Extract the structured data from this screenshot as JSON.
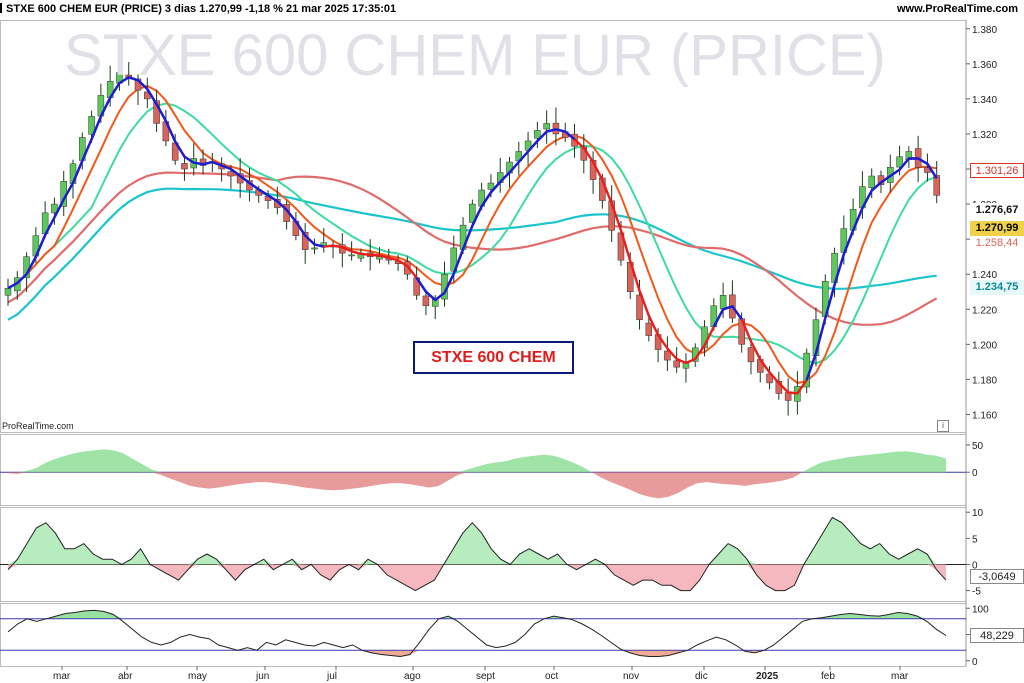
{
  "header": {
    "left": "STXE 600 CHEM EUR (PRICE) 3 dias 1.270,99 -1,18 % 21 mar 2025 17:35:01",
    "right": "www.ProRealTime.com"
  },
  "watermark": "STXE 600 CHEM EUR (PRICE)",
  "annotation": "STXE 600 CHEM",
  "sub_credit": "ProRealTime.com",
  "info_icon": "i",
  "colors": {
    "up": "#5cc85c",
    "down": "#d9655a",
    "ma_fast": "#1420d8",
    "ma_red": "#ea1c1c",
    "ma_orange": "#f2581c",
    "ma_green": "#3ddba0",
    "ma_salmon": "#e06b6b",
    "ma_cyan": "#1bc4cc"
  },
  "badges": {
    "b1": "1.301,26",
    "b2": "1.276,67",
    "b3": "1.270,99",
    "b4": "1.258,44",
    "b5": "1.234,75",
    "osc2": "-3,0649",
    "osc3": "48,229"
  },
  "chart_data": [
    {
      "type": "candlestick",
      "title": "STXE 600 CHEM EUR (PRICE)",
      "x_ticks": [
        "mar",
        "abr",
        "may",
        "jun",
        "jul",
        "ago",
        "sept",
        "oct",
        "nov",
        "dic",
        "2025",
        "feb",
        "mar"
      ],
      "ylim": [
        1150,
        1385
      ],
      "y_ticks": [
        "1.380",
        "1.360",
        "1.340",
        "1.320",
        "1.300",
        "1.280",
        "1.260",
        "1.240",
        "1.220",
        "1.200",
        "1.180",
        "1.160"
      ],
      "y_tick_values": [
        1380,
        1360,
        1340,
        1320,
        1300,
        1280,
        1260,
        1240,
        1220,
        1200,
        1180,
        1160
      ],
      "last_close": 1270.99,
      "change_pct": -1.18,
      "series_levels": [
        1301.26,
        1276.67,
        1270.99,
        1258.44,
        1234.75
      ],
      "close_path": [
        1232,
        1238,
        1250,
        1262,
        1275,
        1280,
        1293,
        1303,
        1318,
        1330,
        1342,
        1350,
        1355,
        1352,
        1345,
        1340,
        1326,
        1316,
        1305,
        1300,
        1306,
        1302,
        1304,
        1300,
        1296,
        1292,
        1288,
        1285,
        1282,
        1278,
        1270,
        1262,
        1254,
        1255,
        1258,
        1256,
        1252,
        1251,
        1252,
        1250,
        1250,
        1248,
        1246,
        1240,
        1228,
        1222,
        1226,
        1240,
        1255,
        1268,
        1280,
        1288,
        1292,
        1298,
        1304,
        1310,
        1316,
        1322,
        1326,
        1320,
        1318,
        1313,
        1305,
        1294,
        1282,
        1265,
        1248,
        1230,
        1214,
        1205,
        1197,
        1191,
        1187,
        1190,
        1198,
        1210,
        1222,
        1228,
        1215,
        1200,
        1190,
        1184,
        1178,
        1172,
        1168,
        1176,
        1195,
        1214,
        1236,
        1252,
        1266,
        1277,
        1290,
        1296,
        1291,
        1301,
        1307,
        1310,
        1301,
        1298,
        1285
      ],
      "moving_averages": [
        {
          "name": "fast",
          "color": "#1420d8",
          "from": 0,
          "to": 35
        },
        {
          "name": "fast",
          "color": "#1420d8",
          "from": 44,
          "to": 62
        },
        {
          "name": "fast",
          "color": "#1420d8",
          "from": 76,
          "to": 80
        },
        {
          "name": "fast",
          "color": "#1420d8",
          "from": 86,
          "to": 101
        }
      ]
    },
    {
      "type": "area",
      "ylim": [
        -60,
        70
      ],
      "y_ticks": [
        "50",
        "0"
      ],
      "y_tick_values": [
        50,
        0
      ],
      "values": [
        -2,
        -3,
        3,
        8,
        18,
        25,
        30,
        35,
        38,
        40,
        42,
        40,
        35,
        25,
        15,
        5,
        -5,
        -12,
        -18,
        -25,
        -28,
        -30,
        -28,
        -25,
        -22,
        -20,
        -18,
        -18,
        -20,
        -22,
        -25,
        -28,
        -30,
        -32,
        -33,
        -32,
        -30,
        -28,
        -25,
        -22,
        -20,
        -20,
        -22,
        -25,
        -28,
        -25,
        -15,
        -5,
        5,
        10,
        15,
        18,
        20,
        25,
        28,
        30,
        32,
        30,
        25,
        18,
        10,
        0,
        -10,
        -18,
        -25,
        -32,
        -40,
        -45,
        -48,
        -45,
        -38,
        -28,
        -20,
        -18,
        -20,
        -22,
        -23,
        -25,
        -22,
        -20,
        -18,
        -15,
        -10,
        0,
        10,
        18,
        22,
        25,
        28,
        30,
        32,
        34,
        36,
        38,
        38,
        36,
        32,
        30,
        25
      ]
    },
    {
      "type": "area",
      "ylim": [
        -7,
        11
      ],
      "y_ticks": [
        "10",
        "5",
        "0",
        "-5"
      ],
      "y_tick_values": [
        10,
        5,
        0,
        -5
      ],
      "last_value": -3.0649,
      "values": [
        -1,
        1,
        4,
        7,
        8,
        6,
        3,
        3,
        4,
        2,
        1,
        1,
        0,
        1,
        3,
        0,
        -1,
        -2,
        -3,
        -1,
        1,
        2,
        1,
        -1,
        -3,
        -1,
        0,
        1,
        -1,
        0,
        1,
        -1,
        0,
        -2,
        -3,
        -1,
        0,
        -1,
        1,
        0,
        -2,
        -3,
        -4,
        -5,
        -4,
        -3,
        0,
        3,
        6,
        8,
        6,
        3,
        1,
        0,
        2,
        3,
        2,
        1,
        2,
        0,
        -1,
        0,
        1,
        0,
        -2,
        -3,
        -4,
        -3,
        -3,
        -4,
        -4,
        -5,
        -5,
        -3,
        0,
        2,
        4,
        3,
        1,
        -2,
        -4,
        -5,
        -5,
        -4,
        0,
        3,
        6,
        9,
        8,
        6,
        4,
        3,
        4,
        2,
        1,
        2,
        3,
        2,
        -1,
        -3
      ]
    },
    {
      "type": "line",
      "ylim": [
        -10,
        110
      ],
      "y_ticks": [
        "100",
        "50",
        "0"
      ],
      "y_tick_values": [
        100,
        50,
        0
      ],
      "last_value": 48.229,
      "levels": [
        80,
        20
      ],
      "values": [
        55,
        70,
        80,
        75,
        80,
        85,
        90,
        92,
        95,
        96,
        94,
        88,
        75,
        60,
        45,
        35,
        30,
        35,
        45,
        50,
        45,
        42,
        30,
        25,
        20,
        25,
        20,
        35,
        30,
        40,
        35,
        30,
        28,
        35,
        30,
        25,
        30,
        20,
        15,
        12,
        10,
        8,
        12,
        35,
        60,
        80,
        85,
        75,
        60,
        45,
        30,
        25,
        28,
        35,
        50,
        70,
        80,
        85,
        82,
        78,
        70,
        60,
        48,
        35,
        22,
        15,
        10,
        8,
        8,
        10,
        15,
        20,
        30,
        38,
        45,
        40,
        30,
        18,
        15,
        20,
        30,
        45,
        60,
        75,
        80,
        82,
        85,
        88,
        90,
        88,
        86,
        85,
        88,
        92,
        90,
        85,
        75,
        60,
        48
      ]
    }
  ]
}
